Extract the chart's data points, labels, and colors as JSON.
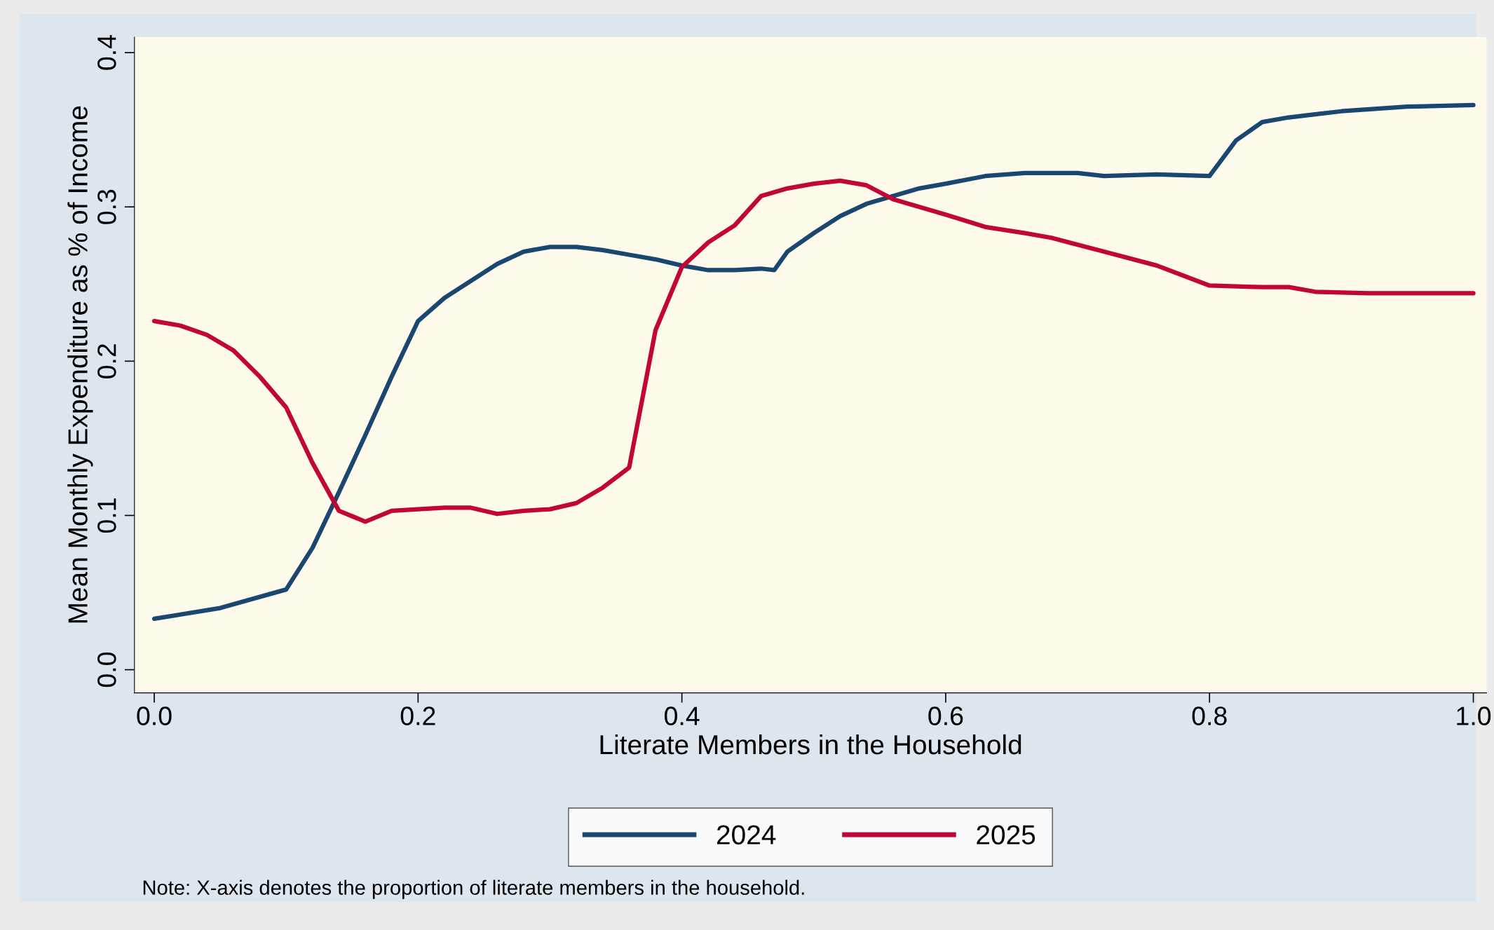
{
  "chart_data": {
    "type": "line",
    "xlabel": "Literate Members in the Household",
    "ylabel": "Mean Monthly Expenditure as % of Income",
    "xlim": [
      -0.015,
      1.01
    ],
    "ylim": [
      -0.015,
      0.41
    ],
    "xticks": [
      {
        "value": 0,
        "label": "0.0"
      },
      0.2,
      0.4,
      0.6,
      0.8,
      {
        "value": 1,
        "label": "1.0"
      }
    ],
    "yticks": [
      {
        "value": 0,
        "label": "0.0"
      },
      0.1,
      0.2,
      0.3,
      0.4
    ],
    "grid": false,
    "legend": "bottom",
    "marker": "none",
    "line_style": "solid",
    "annotations": [
      "Note: X-axis denotes the proportion of literate members in the household."
    ],
    "series": [
      {
        "name": "2024",
        "color": "#1a476f",
        "x": [
          0,
          0.05,
          0.1,
          0.12,
          0.14,
          0.16,
          0.18,
          0.2,
          0.22,
          0.24,
          0.26,
          0.28,
          0.3,
          0.32,
          0.34,
          0.36,
          0.38,
          0.4,
          0.42,
          0.44,
          0.46,
          0.47,
          0.48,
          0.5,
          0.52,
          0.54,
          0.56,
          0.58,
          0.6,
          0.63,
          0.66,
          0.7,
          0.72,
          0.76,
          0.8,
          0.82,
          0.84,
          0.86,
          0.88,
          0.9,
          0.95,
          1.0
        ],
        "values": [
          0.033,
          0.04,
          0.052,
          0.079,
          0.115,
          0.152,
          0.19,
          0.226,
          0.241,
          0.252,
          0.263,
          0.271,
          0.274,
          0.274,
          0.272,
          0.269,
          0.266,
          0.262,
          0.259,
          0.259,
          0.26,
          0.259,
          0.271,
          0.283,
          0.294,
          0.302,
          0.307,
          0.312,
          0.315,
          0.32,
          0.322,
          0.322,
          0.32,
          0.321,
          0.32,
          0.343,
          0.355,
          0.358,
          0.36,
          0.362,
          0.365,
          0.366
        ]
      },
      {
        "name": "2025",
        "color": "#c10534",
        "x": [
          0,
          0.02,
          0.04,
          0.06,
          0.08,
          0.1,
          0.12,
          0.14,
          0.16,
          0.18,
          0.2,
          0.22,
          0.24,
          0.26,
          0.28,
          0.3,
          0.32,
          0.34,
          0.36,
          0.38,
          0.4,
          0.42,
          0.44,
          0.46,
          0.48,
          0.5,
          0.52,
          0.54,
          0.56,
          0.58,
          0.6,
          0.63,
          0.66,
          0.68,
          0.72,
          0.76,
          0.8,
          0.84,
          0.86,
          0.88,
          0.92,
          1.0
        ],
        "values": [
          0.226,
          0.223,
          0.217,
          0.207,
          0.19,
          0.17,
          0.134,
          0.103,
          0.096,
          0.103,
          0.104,
          0.105,
          0.105,
          0.101,
          0.103,
          0.104,
          0.108,
          0.118,
          0.131,
          0.22,
          0.261,
          0.277,
          0.288,
          0.307,
          0.312,
          0.315,
          0.317,
          0.314,
          0.305,
          0.3,
          0.295,
          0.287,
          0.283,
          0.28,
          0.271,
          0.262,
          0.249,
          0.248,
          0.248,
          0.245,
          0.244,
          0.244
        ]
      }
    ]
  }
}
